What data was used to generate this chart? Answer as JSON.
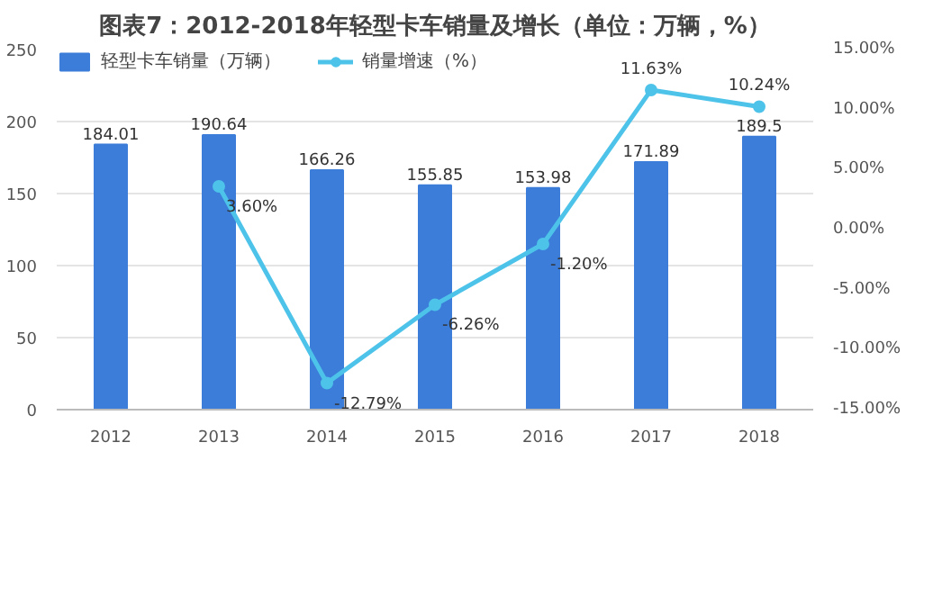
{
  "chart_data": {
    "type": "bar",
    "title": "图表7：2012-2018年轻型卡车销量及增长（单位：万辆，%）",
    "categories": [
      "2012",
      "2013",
      "2014",
      "2015",
      "2016",
      "2017",
      "2018"
    ],
    "series": [
      {
        "name": "轻型卡车销量（万辆）",
        "color": "#3b7dd8",
        "values": [
          184.01,
          190.64,
          166.26,
          155.85,
          153.98,
          171.89,
          189.5
        ],
        "data_labels": true
      },
      {
        "name": "销量增速（%）",
        "type": "line",
        "axis": "y2",
        "color": "#4ec3ea",
        "marker": "circle",
        "values": [
          null,
          3.6,
          -12.79,
          -6.26,
          -1.2,
          11.63,
          10.24
        ],
        "value_labels": [
          null,
          "3.60%",
          "-12.79%",
          "-6.26%",
          "-1.20%",
          "11.63%",
          "10.24%"
        ]
      }
    ],
    "ylim": [
      0,
      250
    ],
    "yticks": [
      0,
      50,
      100,
      150,
      200,
      250
    ],
    "y2lim": [
      -15,
      15
    ],
    "y2ticks": [
      {
        "value": -15,
        "label": "-15.00%"
      },
      {
        "value": -10,
        "label": "-10.00%"
      },
      {
        "value": -5,
        "label": "-5.00%"
      },
      {
        "value": 0,
        "label": "0.00%"
      },
      {
        "value": 5,
        "label": "5.00%"
      },
      {
        "value": 10,
        "label": "10.00%"
      },
      {
        "value": 15,
        "label": "15.00%"
      }
    ],
    "grid": "y",
    "legend": "top left"
  }
}
